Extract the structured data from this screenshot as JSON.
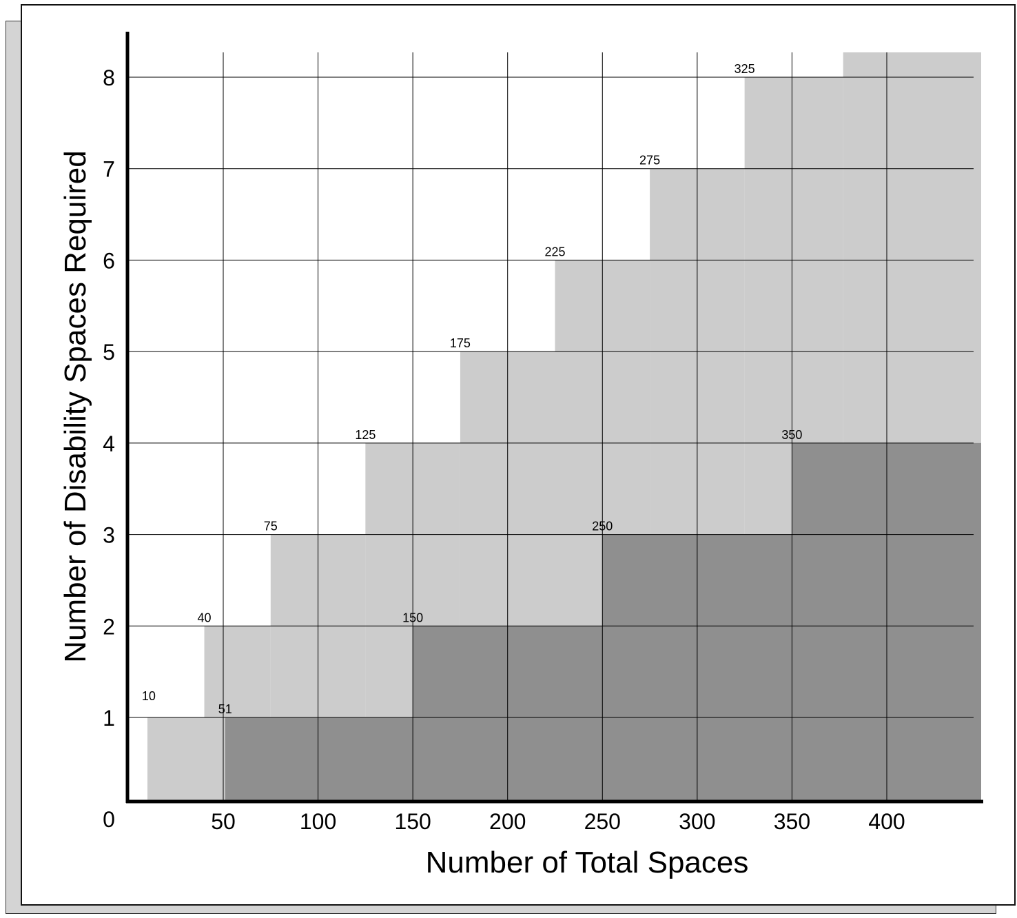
{
  "chart_data": {
    "type": "area",
    "xlabel": "Number of Total Spaces",
    "ylabel": "Number of Disability Spaces Required",
    "xlim": [
      0,
      460
    ],
    "ylim": [
      0,
      8.3
    ],
    "x_ticks": [
      50,
      100,
      150,
      200,
      250,
      300,
      350,
      400
    ],
    "y_ticks": [
      1,
      2,
      3,
      4,
      5,
      6,
      7,
      8
    ],
    "origin_label": "0",
    "grid": true,
    "colors": {
      "light_series": "#cccccc",
      "dark_series": "#8f8f8f",
      "grid": "#000000"
    },
    "series": [
      {
        "kind": "light-step",
        "steps": [
          {
            "x_start": 10,
            "x_end": 40,
            "y": 1,
            "label": "10"
          },
          {
            "x_start": 40,
            "x_end": 75,
            "y": 2,
            "label": "40"
          },
          {
            "x_start": 75,
            "x_end": 125,
            "y": 3,
            "label": "75"
          },
          {
            "x_start": 125,
            "x_end": 175,
            "y": 4,
            "label": "125"
          },
          {
            "x_start": 175,
            "x_end": 225,
            "y": 5,
            "label": "175"
          },
          {
            "x_start": 225,
            "x_end": 275,
            "y": 6,
            "label": "225"
          },
          {
            "x_start": 275,
            "x_end": 325,
            "y": 7,
            "label": "275"
          },
          {
            "x_start": 325,
            "x_end": 377,
            "y": 8,
            "label": "325"
          },
          {
            "x_start": 377,
            "x_end": 460,
            "y": 8.3,
            "label": ""
          }
        ]
      },
      {
        "kind": "dark-step",
        "steps": [
          {
            "x_start": 51,
            "x_end": 150,
            "y": 1,
            "label": "51"
          },
          {
            "x_start": 150,
            "x_end": 250,
            "y": 2,
            "label": "150"
          },
          {
            "x_start": 250,
            "x_end": 350,
            "y": 3,
            "label": "250"
          },
          {
            "x_start": 350,
            "x_end": 460,
            "y": 4,
            "label": "350"
          }
        ]
      }
    ]
  }
}
